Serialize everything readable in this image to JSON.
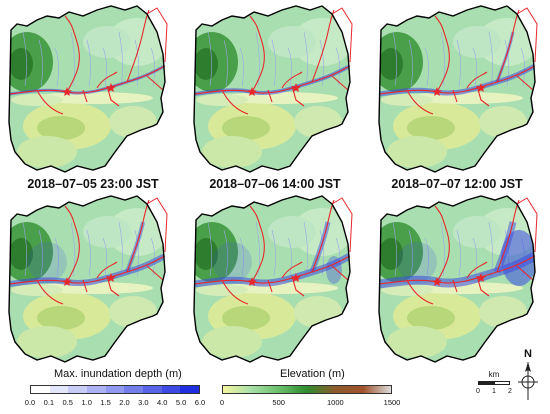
{
  "figure": {
    "panels": [
      {
        "id": 1,
        "flood_level": 1
      },
      {
        "id": 2,
        "flood_level": 2
      },
      {
        "id": 3,
        "flood_level": 3
      },
      {
        "id": 4,
        "flood_level": 4
      },
      {
        "id": 5,
        "flood_level": 5
      },
      {
        "id": 6,
        "flood_level": 6
      }
    ],
    "captions": [
      "2018–07–05 23:00 JST",
      "2018–07–06 14:00 JST",
      "2018–07–07 12:00 JST"
    ]
  },
  "legend_inundation": {
    "title": "Max. inundation depth (m)",
    "ticks": [
      "0.0",
      "0.1",
      "0.5",
      "1.0",
      "1.5",
      "2.0",
      "3.0",
      "4.0",
      "5.0",
      "6.0"
    ],
    "colors": [
      "#ffffff",
      "#e4e6fb",
      "#c8ccf7",
      "#acb2f3",
      "#9098ef",
      "#747eeb",
      "#5864e7",
      "#3c4ae3",
      "#1f2fdf"
    ]
  },
  "legend_elevation": {
    "title": "Elevation (m)",
    "ticks": [
      "0",
      "500",
      "1000",
      "1500"
    ],
    "gradient": [
      "#f5f5a0",
      "#a8e0a8",
      "#6bbf6b",
      "#2e8b2e",
      "#8b5a2b",
      "#a0522d",
      "#dcdcdc"
    ]
  },
  "scale_bar": {
    "unit": "km",
    "ticks": [
      "0",
      "1",
      "2"
    ]
  },
  "north_arrow": {
    "label": "N"
  },
  "colors": {
    "river_network": "#e8272b",
    "boundary": "#000000",
    "inundation": "#3b4be0"
  }
}
